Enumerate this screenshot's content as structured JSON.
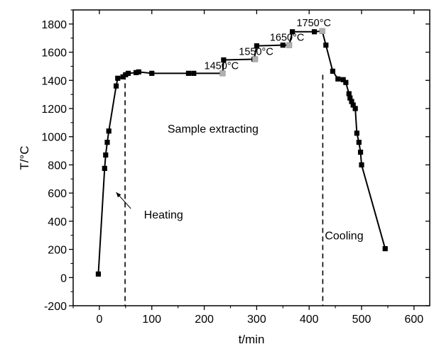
{
  "chart_data": {
    "type": "line",
    "title": "",
    "xlabel": "t/min",
    "ylabel": "T/°C",
    "xlim": [
      -50,
      630
    ],
    "ylim": [
      -200,
      1900
    ],
    "xticks": [
      0,
      100,
      200,
      300,
      400,
      500,
      600
    ],
    "yticks": [
      -200,
      0,
      200,
      400,
      600,
      800,
      1000,
      1200,
      1400,
      1600,
      1800
    ],
    "grid": false,
    "series": [
      {
        "name": "",
        "color": "#000000",
        "x": [
          -2,
          10,
          12,
          15,
          18,
          32,
          35,
          45,
          50,
          55,
          70,
          75,
          100,
          170,
          180,
          235,
          237,
          295,
          300,
          350,
          362,
          368,
          410,
          425,
          432,
          445,
          455,
          465,
          470,
          476,
          478,
          481,
          484,
          488,
          491,
          495,
          498,
          500,
          545
        ],
        "y": [
          25,
          775,
          870,
          960,
          1040,
          1360,
          1415,
          1425,
          1440,
          1450,
          1455,
          1460,
          1450,
          1450,
          1450,
          1450,
          1545,
          1550,
          1645,
          1650,
          1650,
          1745,
          1745,
          1750,
          1650,
          1465,
          1410,
          1405,
          1385,
          1305,
          1275,
          1250,
          1225,
          1200,
          1025,
          960,
          890,
          800,
          205
        ]
      }
    ],
    "gray_markers": [
      {
        "x": 235,
        "y": 1450
      },
      {
        "x": 297,
        "y": 1550
      },
      {
        "x": 362,
        "y": 1650
      },
      {
        "x": 425,
        "y": 1750
      }
    ],
    "vlines": [
      49,
      426
    ],
    "annotations": [
      {
        "text": "1450°C",
        "x": 200,
        "y": 1480
      },
      {
        "text": "1550°C",
        "x": 266,
        "y": 1580
      },
      {
        "text": "1650°C",
        "x": 325,
        "y": 1680
      },
      {
        "text": "1750°C",
        "x": 376,
        "y": 1785
      },
      {
        "text": "Sample extracting",
        "x": 130,
        "y": 1030
      },
      {
        "text": "Heating",
        "x": 85,
        "y": 420
      },
      {
        "text": "Cooling",
        "x": 430,
        "y": 270
      }
    ],
    "arrow": {
      "from": {
        "x": 60,
        "y": 490
      },
      "to": {
        "x": 32,
        "y": 605
      }
    }
  }
}
